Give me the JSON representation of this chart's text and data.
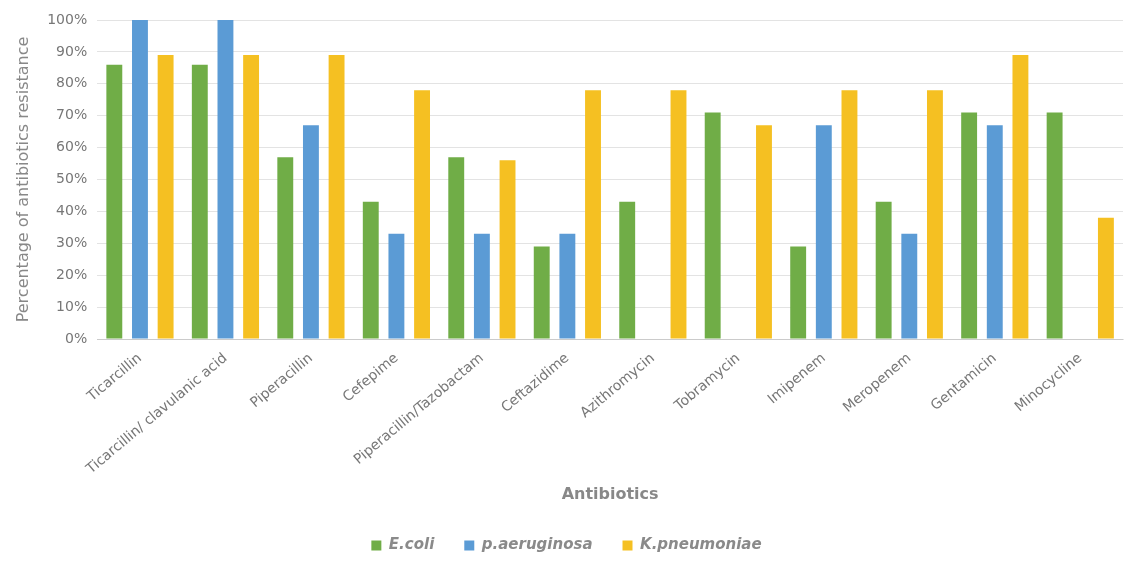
{
  "chart_data": {
    "type": "bar",
    "xlabel": "Antibiotics",
    "ylabel": "Percentage of antibiotics resistance",
    "categories": [
      "Ticarcillin",
      "Ticarcillin/ clavulanic acid",
      "Piperacillin",
      "Cefepime",
      "Piperacillin/Tazobactam",
      "Ceftazidime",
      "Azithromycin",
      "Tobramycin",
      "Imipenem",
      "Meropenem",
      "Gentamicin",
      "Minocycline"
    ],
    "series": [
      {
        "name": "E.coli",
        "color": "#70ad47",
        "values": [
          86,
          86,
          57,
          43,
          57,
          29,
          43,
          71,
          29,
          43,
          71,
          71
        ]
      },
      {
        "name": "p.aeruginosa",
        "color": "#5b9bd5",
        "values": [
          100,
          100,
          67,
          33,
          33,
          33,
          0,
          0,
          67,
          33,
          67,
          0
        ]
      },
      {
        "name": "K.pneumoniae",
        "color": "#f5c022",
        "values": [
          89,
          89,
          89,
          78,
          56,
          78,
          78,
          67,
          78,
          78,
          89,
          38
        ]
      }
    ],
    "ylim": [
      0,
      100
    ],
    "yticks": [
      {
        "value": 0,
        "label": "0%"
      },
      {
        "value": 10,
        "label": "10%"
      },
      {
        "value": 20,
        "label": "20%"
      },
      {
        "value": 30,
        "label": "30%"
      },
      {
        "value": 40,
        "label": "40%"
      },
      {
        "value": 50,
        "label": "50%"
      },
      {
        "value": 60,
        "label": "60%"
      },
      {
        "value": 70,
        "label": "70%"
      },
      {
        "value": 80,
        "label": "80%"
      },
      {
        "value": 90,
        "label": "90%"
      },
      {
        "value": 100,
        "label": "100%"
      }
    ],
    "grid": "y",
    "legend": "bottom"
  }
}
